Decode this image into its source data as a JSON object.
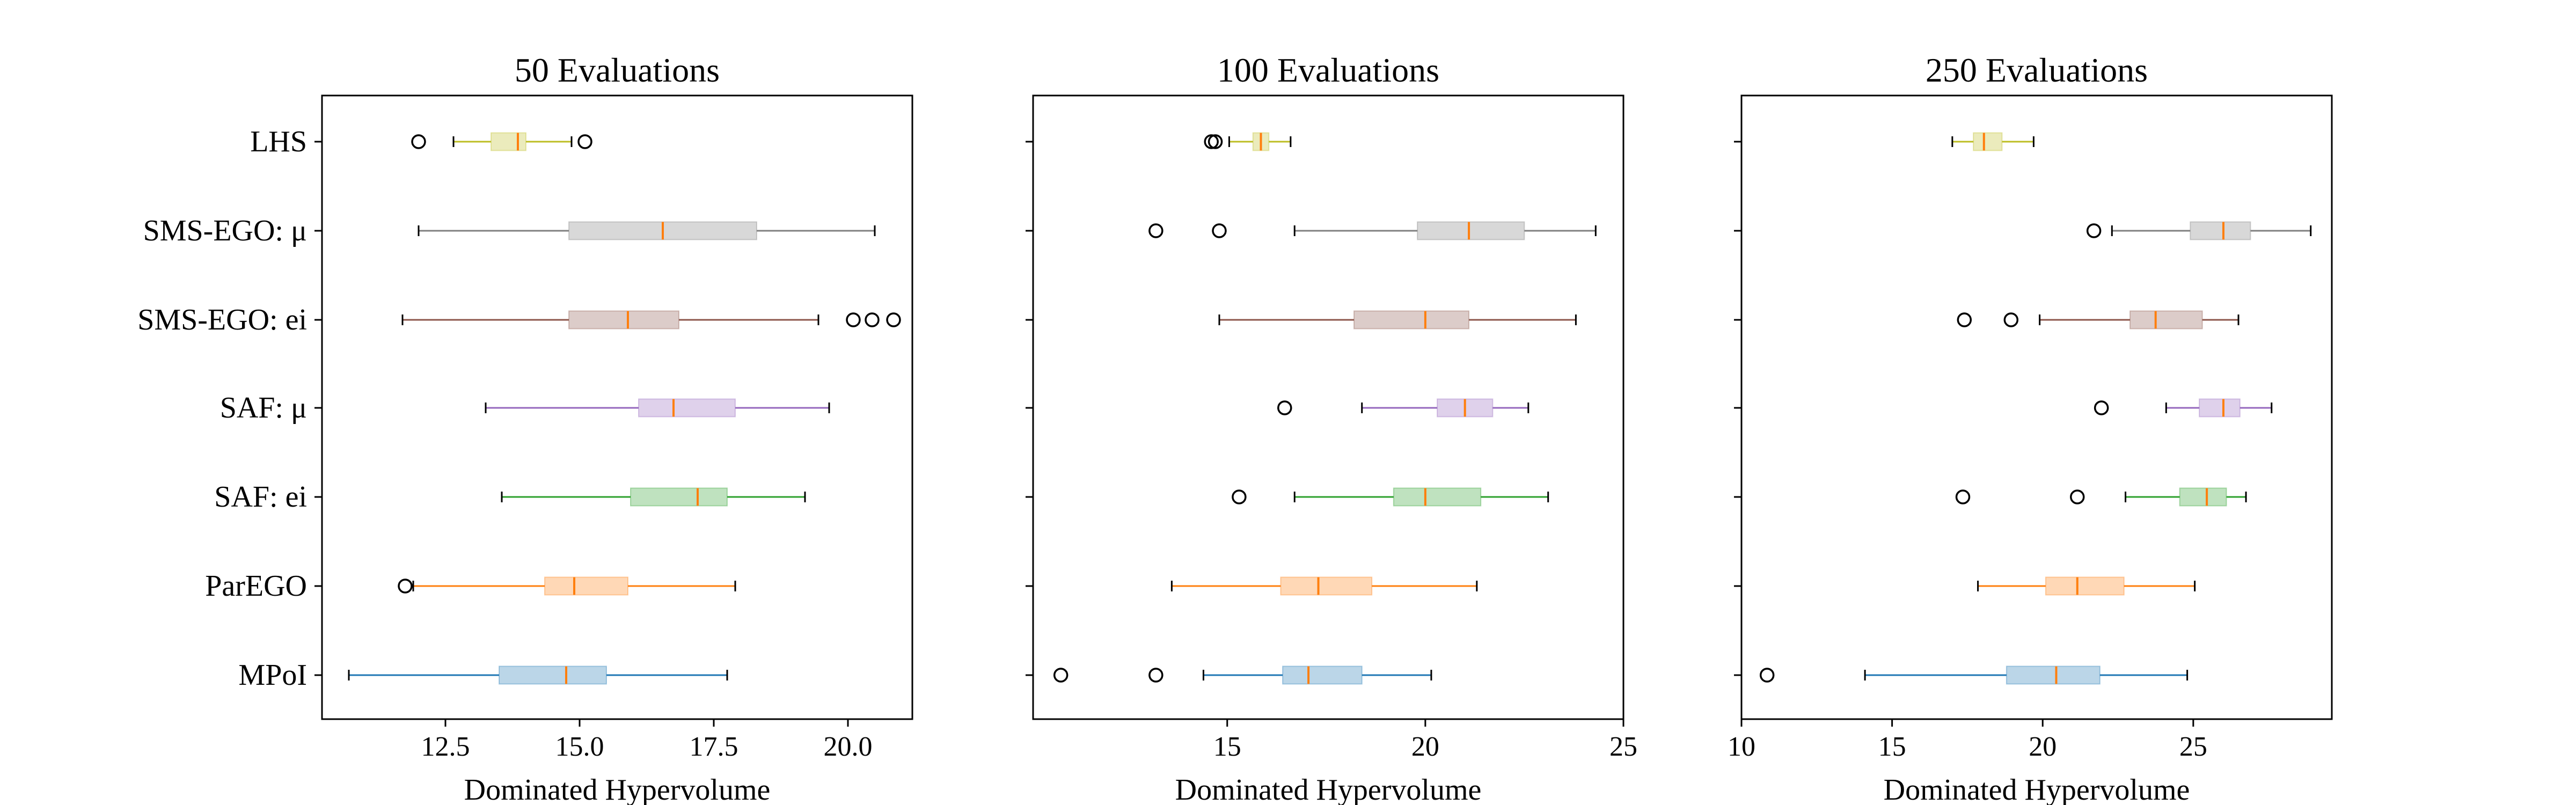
{
  "chart_data": [
    {
      "type": "boxplot",
      "orientation": "horizontal",
      "title": "50 Evaluations",
      "xlabel": "Dominated Hypervolume",
      "ylabel": "",
      "xlim": [
        10.2,
        21.2
      ],
      "xticks": [
        12.5,
        15.0,
        17.5,
        20.0
      ],
      "xtick_labels": [
        "12.5",
        "15.0",
        "17.5",
        "20.0"
      ],
      "grid": false,
      "categories": [
        "LHS",
        "SMS-EGO: μ",
        "SMS-EGO: ei",
        "SAF: μ",
        "SAF: ei",
        "ParEGO",
        "MPoI"
      ],
      "boxes": [
        {
          "category": "LHS",
          "whislo": 12.65,
          "q1": 13.35,
          "med": 13.85,
          "q3": 14.0,
          "whishi": 14.85,
          "fliers": [
            12.0,
            15.1
          ]
        },
        {
          "category": "SMS-EGO: μ",
          "whislo": 12.0,
          "q1": 14.8,
          "med": 16.55,
          "q3": 18.3,
          "whishi": 20.5,
          "fliers": []
        },
        {
          "category": "SMS-EGO: ei",
          "whislo": 11.7,
          "q1": 14.8,
          "med": 15.9,
          "q3": 16.85,
          "whishi": 19.45,
          "fliers": [
            20.1,
            20.45,
            20.85
          ]
        },
        {
          "category": "SAF: μ",
          "whislo": 13.25,
          "q1": 16.1,
          "med": 16.75,
          "q3": 17.9,
          "whishi": 19.65,
          "fliers": []
        },
        {
          "category": "SAF: ei",
          "whislo": 13.55,
          "q1": 15.95,
          "med": 17.2,
          "q3": 17.75,
          "whishi": 19.2,
          "fliers": []
        },
        {
          "category": "ParEGO",
          "whislo": 11.9,
          "q1": 14.35,
          "med": 14.9,
          "q3": 15.9,
          "whishi": 17.9,
          "fliers": [
            11.75
          ]
        },
        {
          "category": "MPoI",
          "whislo": 10.7,
          "q1": 13.5,
          "med": 14.75,
          "q3": 15.5,
          "whishi": 17.75,
          "fliers": []
        }
      ]
    },
    {
      "type": "boxplot",
      "orientation": "horizontal",
      "title": "100 Evaluations",
      "xlabel": "Dominated Hypervolume",
      "ylabel": "",
      "xlim": [
        10.1,
        25.0
      ],
      "xticks": [
        15,
        20,
        25
      ],
      "xtick_labels": [
        "15",
        "20",
        "25"
      ],
      "grid": false,
      "categories": [
        "LHS",
        "SMS-EGO: μ",
        "SMS-EGO: ei",
        "SAF: μ",
        "SAF: ei",
        "ParEGO",
        "MPoI"
      ],
      "boxes": [
        {
          "category": "LHS",
          "whislo": 15.05,
          "q1": 15.65,
          "med": 15.85,
          "q3": 16.05,
          "whishi": 16.6,
          "fliers": [
            14.6,
            14.7
          ]
        },
        {
          "category": "SMS-EGO: μ",
          "whislo": 16.7,
          "q1": 19.8,
          "med": 21.1,
          "q3": 22.5,
          "whishi": 24.3,
          "fliers": [
            13.2,
            14.8
          ]
        },
        {
          "category": "SMS-EGO: ei",
          "whislo": 14.8,
          "q1": 18.2,
          "med": 20.0,
          "q3": 21.1,
          "whishi": 23.8,
          "fliers": []
        },
        {
          "category": "SAF: μ",
          "whislo": 18.4,
          "q1": 20.3,
          "med": 21.0,
          "q3": 21.7,
          "whishi": 22.6,
          "fliers": [
            16.45
          ]
        },
        {
          "category": "SAF: ei",
          "whislo": 16.7,
          "q1": 19.2,
          "med": 20.0,
          "q3": 21.4,
          "whishi": 23.1,
          "fliers": [
            15.3
          ]
        },
        {
          "category": "ParEGO",
          "whislo": 13.6,
          "q1": 16.35,
          "med": 17.3,
          "q3": 18.65,
          "whishi": 21.3,
          "fliers": []
        },
        {
          "category": "MPoI",
          "whislo": 14.4,
          "q1": 16.4,
          "med": 17.05,
          "q3": 18.4,
          "whishi": 20.15,
          "fliers": [
            10.8,
            13.2
          ]
        }
      ]
    },
    {
      "type": "boxplot",
      "orientation": "horizontal",
      "title": "250 Evaluations",
      "xlabel": "Dominated Hypervolume",
      "ylabel": "",
      "xlim": [
        10.0,
        29.6
      ],
      "xticks": [
        10,
        15,
        20,
        25
      ],
      "xtick_labels": [
        "10",
        "15",
        "20",
        "25"
      ],
      "grid": false,
      "categories": [
        "LHS",
        "SMS-EGO: μ",
        "SMS-EGO: ei",
        "SAF: μ",
        "SAF: ei",
        "ParEGO",
        "MPoI"
      ],
      "boxes": [
        {
          "category": "LHS",
          "whislo": 17.0,
          "q1": 17.7,
          "med": 18.05,
          "q3": 18.65,
          "whishi": 19.7,
          "fliers": []
        },
        {
          "category": "SMS-EGO: μ",
          "whislo": 22.3,
          "q1": 24.9,
          "med": 26.0,
          "q3": 26.9,
          "whishi": 28.9,
          "fliers": [
            21.7
          ]
        },
        {
          "category": "SMS-EGO: ei",
          "whislo": 19.9,
          "q1": 22.9,
          "med": 23.75,
          "q3": 25.3,
          "whishi": 26.5,
          "fliers": [
            17.4,
            18.95
          ]
        },
        {
          "category": "SAF: μ",
          "whislo": 24.1,
          "q1": 25.2,
          "med": 26.0,
          "q3": 26.55,
          "whishi": 27.6,
          "fliers": [
            21.95
          ]
        },
        {
          "category": "SAF: ei",
          "whislo": 22.75,
          "q1": 24.55,
          "med": 25.45,
          "q3": 26.1,
          "whishi": 26.75,
          "fliers": [
            17.35,
            21.15
          ]
        },
        {
          "category": "ParEGO",
          "whislo": 17.85,
          "q1": 20.1,
          "med": 21.15,
          "q3": 22.7,
          "whishi": 25.05,
          "fliers": []
        },
        {
          "category": "MPoI",
          "whislo": 14.1,
          "q1": 18.8,
          "med": 20.45,
          "q3": 21.9,
          "whishi": 24.8,
          "fliers": [
            10.85
          ]
        }
      ]
    }
  ],
  "colors": {
    "LHS": "#bcbd22",
    "SMS-EGO: μ": "#7f7f7f",
    "SMS-EGO: ei": "#8c564b",
    "SAF: μ": "#9467bd",
    "SAF: ei": "#2ca02c",
    "ParEGO": "#ff7f0e",
    "MPoI": "#1f77b4",
    "median": "#ff7f0e",
    "axes": "#000000"
  }
}
